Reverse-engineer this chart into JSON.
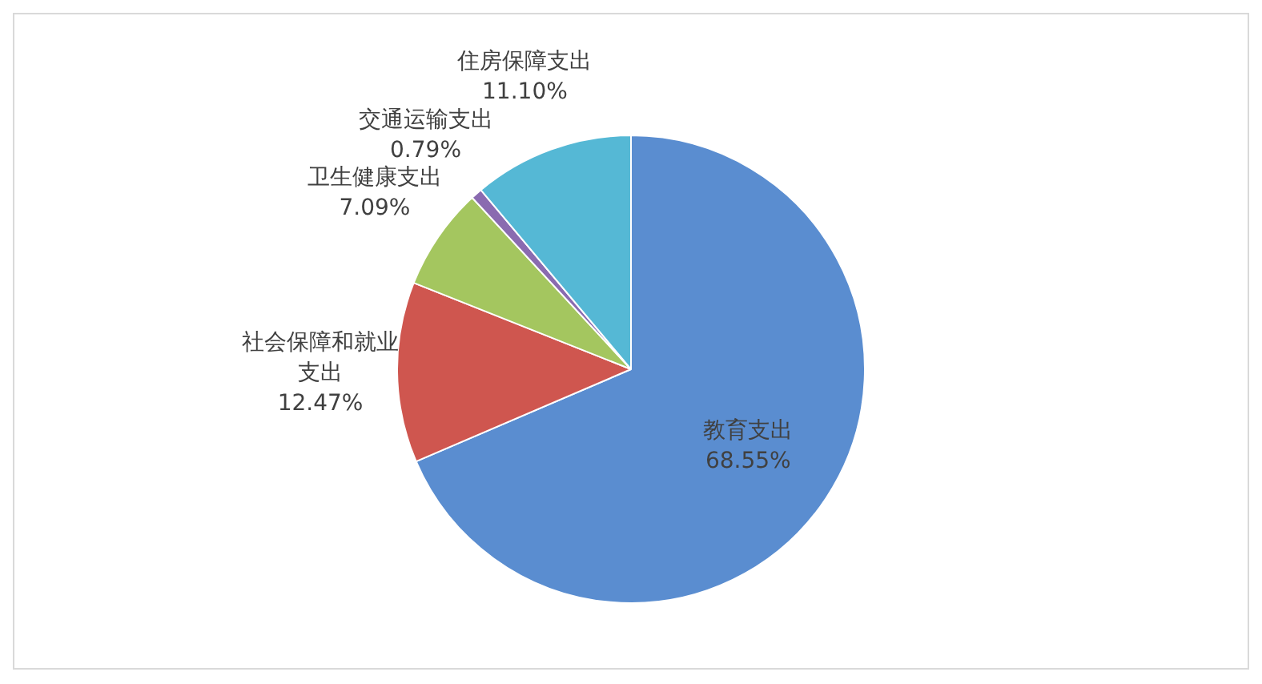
{
  "chart_data": {
    "type": "pie",
    "categories": [
      "教育支出",
      "社会保障和就业支出",
      "卫生健康支出",
      "交通运输支出",
      "住房保障支出"
    ],
    "values": [
      68.55,
      12.47,
      7.09,
      0.79,
      11.1
    ],
    "colors": [
      "#5a8dd0",
      "#cf564f",
      "#a4c65f",
      "#8a6bb0",
      "#55b8d5"
    ],
    "value_labels": [
      "68.55%",
      "12.47%",
      "7.09%",
      "0.79%",
      "11.10%"
    ],
    "legend": false
  }
}
